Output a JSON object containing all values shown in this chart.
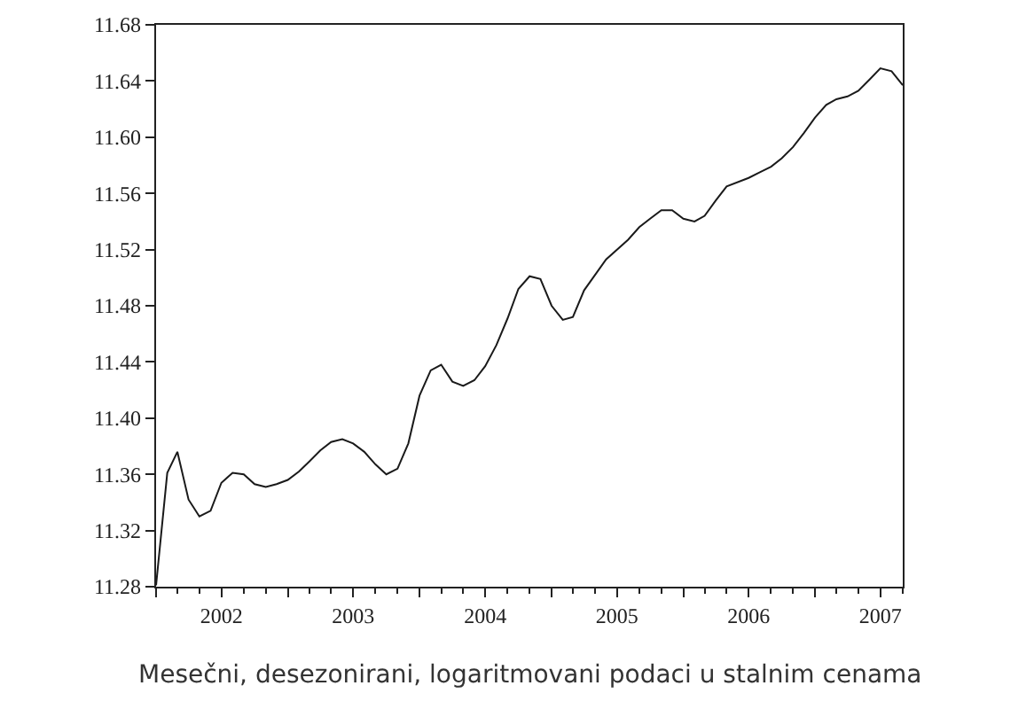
{
  "chart_data": {
    "type": "line",
    "annotations": [
      "Mesečni, desezonirani, logaritmovani podaci u stalnim cenama"
    ],
    "x": [
      "2002-01",
      "2002-02",
      "2002-03",
      "2002-04",
      "2002-05",
      "2002-06",
      "2002-07",
      "2002-08",
      "2002-09",
      "2002-10",
      "2002-11",
      "2002-12",
      "2003-01",
      "2003-02",
      "2003-03",
      "2003-04",
      "2003-05",
      "2003-06",
      "2003-07",
      "2003-08",
      "2003-09",
      "2003-10",
      "2003-11",
      "2003-12",
      "2004-01",
      "2004-02",
      "2004-03",
      "2004-04",
      "2004-05",
      "2004-06",
      "2004-07",
      "2004-08",
      "2004-09",
      "2004-10",
      "2004-11",
      "2004-12",
      "2005-01",
      "2005-02",
      "2005-03",
      "2005-04",
      "2005-06",
      "2005-08",
      "2005-09",
      "2005-10",
      "2005-11",
      "2005-12",
      "2006-01",
      "2006-02",
      "2006-03",
      "2006-04",
      "2006-05",
      "2006-07",
      "2006-08",
      "2006-09",
      "2006-10",
      "2006-11",
      "2006-12",
      "2007-01",
      "2007-02",
      "2007-03",
      "2007-04",
      "2007-05",
      "2007-06",
      "2007-07",
      "2007-08",
      "2007-09"
    ],
    "series": [
      {
        "color": "#1a1a1a",
        "values": [
          11.281,
          11.361,
          11.376,
          11.342,
          11.33,
          11.334,
          11.354,
          11.361,
          11.36,
          11.353,
          11.351,
          11.353,
          11.356,
          11.362,
          11.369,
          11.377,
          11.383,
          11.385,
          11.382,
          11.376,
          11.367,
          11.36,
          11.364,
          11.382,
          11.416,
          11.434,
          11.438,
          11.426,
          11.423,
          11.427,
          11.437,
          11.452,
          11.471,
          11.492,
          11.501,
          11.499,
          11.48,
          11.47,
          11.472,
          11.491,
          11.513,
          11.527,
          11.536,
          11.542,
          11.548,
          11.548,
          11.542,
          11.54,
          11.544,
          11.555,
          11.565,
          11.571,
          11.575,
          11.579,
          11.585,
          11.593,
          11.603,
          11.614,
          11.623,
          11.627,
          11.629,
          11.633,
          11.641,
          11.649,
          11.647,
          11.637
        ]
      }
    ],
    "xlim": [
      "2002-01",
      "2007-09"
    ],
    "xticks": [
      {
        "value": "2002-01",
        "label": null
      },
      {
        "value": "2002-07",
        "label": "2002"
      },
      {
        "value": "2003-01",
        "label": null
      },
      {
        "value": "2003-07",
        "label": "2003"
      },
      {
        "value": "2004-01",
        "label": null
      },
      {
        "value": "2004-07",
        "label": "2004"
      },
      {
        "value": "2005-01",
        "label": null
      },
      {
        "value": "2005-07",
        "label": "2005"
      },
      {
        "value": "2006-01",
        "label": null
      },
      {
        "value": "2006-07",
        "label": "2006"
      },
      {
        "value": "2007-01",
        "label": null
      },
      {
        "value": "2007-07",
        "label": "2007"
      }
    ],
    "ylim": [
      11.28,
      11.68
    ],
    "yticks": [
      11.28,
      11.32,
      11.36,
      {
        "value": 11.4,
        "label": "11.40"
      },
      11.44,
      11.48,
      11.52,
      11.56,
      {
        "value": 11.6,
        "label": "11.60"
      },
      11.64,
      {
        "value": 11.68,
        "label": "11.68"
      }
    ],
    "grid": false,
    "marker": "none",
    "line_style": "solid"
  }
}
